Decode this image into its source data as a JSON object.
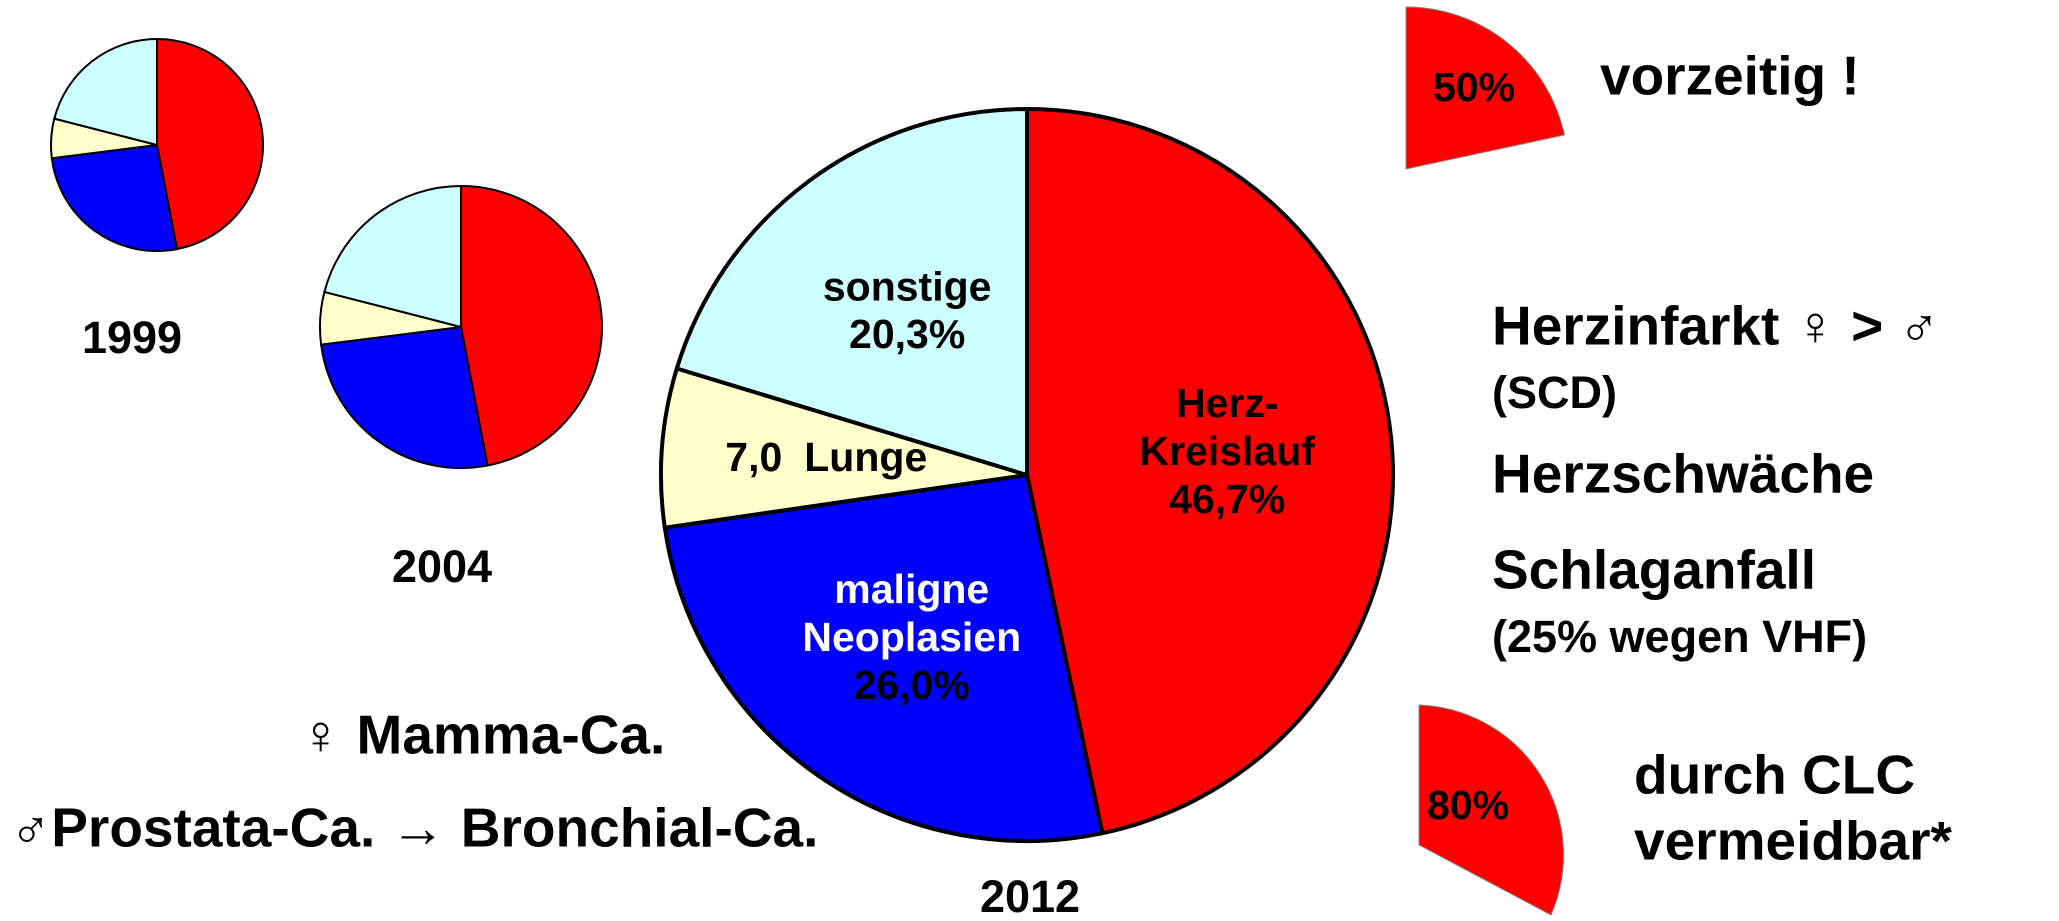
{
  "chart_data": [
    {
      "type": "pie",
      "title": "1999",
      "values": [
        47,
        26,
        6,
        21
      ],
      "colors": [
        "#ff0000",
        "#0000ff",
        "#ffffcc",
        "#ccffff"
      ]
    },
    {
      "type": "pie",
      "title": "2004",
      "values": [
        47,
        26,
        6,
        21
      ],
      "colors": [
        "#ff0000",
        "#0000ff",
        "#ffffcc",
        "#ccffff"
      ]
    },
    {
      "type": "pie",
      "title": "2012",
      "categories": [
        "Herz-\nKreislauf",
        "maligne\nNeoplasien",
        "Lunge",
        "sonstige"
      ],
      "values": [
        46.7,
        26.0,
        7.0,
        20.3
      ],
      "value_labels": [
        "46,7%",
        "26,0%",
        "7,0",
        "20,3%"
      ],
      "colors": [
        "#ff0000",
        "#0000ff",
        "#ffffcc",
        "#ccffff"
      ],
      "label_colors": [
        "#000000",
        "#ffffff",
        "#000000",
        "#000000"
      ]
    }
  ],
  "annotations": {
    "premature": {
      "label": "50%",
      "text": "vorzeitig !"
    },
    "conditions": [
      "Herzinfarkt ♀ > ♂",
      "(SCD)",
      "Herzschwäche",
      "Schlaganfall",
      "(25% wegen VHF)"
    ],
    "avoidable": {
      "label": "80%",
      "lines": [
        "durch CLC",
        "vermeidbar*"
      ]
    },
    "cancer": [
      "♀ Mamma-Ca.",
      "♂Prostata-Ca. → Bronchial-Ca."
    ]
  }
}
